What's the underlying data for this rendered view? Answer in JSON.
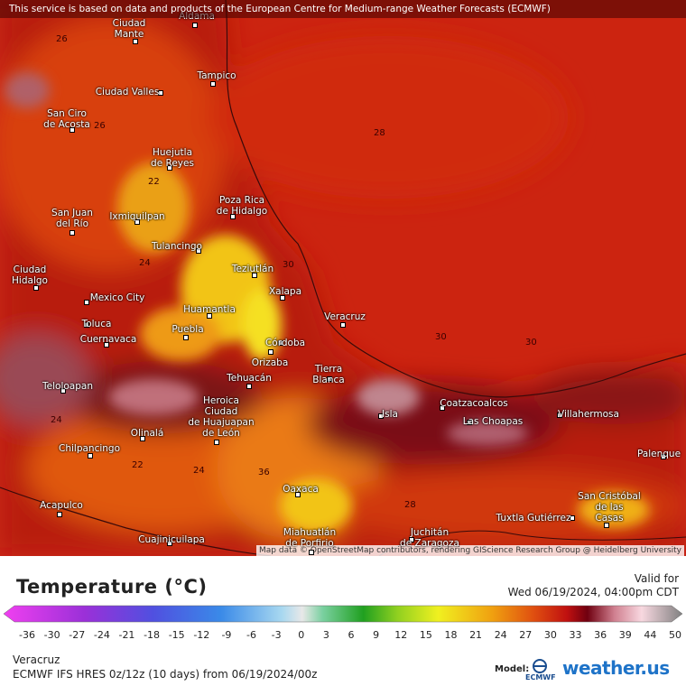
{
  "header": {
    "notice": "This service is based on data and products of the European Centre for Medium-range Weather Forecasts (ECMWF)"
  },
  "map": {
    "cities": [
      "Aldama",
      "Ciudad\nMante",
      "Tampico",
      "Ciudad Valles",
      "San Ciro\nde Acosta",
      "Huejutla\nde Reyes",
      "Poza Rica\nde Hidalgo",
      "San Juan\ndel Río",
      "Ixmiquilpan",
      "Tulancingo",
      "Teziutlán",
      "Ciudad\nHidalgo",
      "Xalapa",
      "Mexico City",
      "Huamantla",
      "Veracruz",
      "Toluca",
      "Puebla",
      "Cuernavaca",
      "Córdoba",
      "Orizaba",
      "Tierra\nBlanca",
      "Tehuacán",
      "Teloloapan",
      "Heroica\nCiudad\nde Huajuapan\nde León",
      "Coatzacoalcos",
      "Villahermosa",
      "Isla",
      "Las Choapas",
      "Olinalá",
      "Chilpancingo",
      "Palenque",
      "Oaxaca",
      "San Cristóbal\nde las\nCasas",
      "Acapulco",
      "Tuxtla Gutiérrez",
      "Juchitán\nde Zaragoza",
      "Miahuatlán\nde Porfirio",
      "Cuajinicuilapa"
    ],
    "contour_labels": [
      28,
      26,
      26,
      22,
      24,
      30,
      30,
      30,
      24,
      22,
      24,
      28,
      36
    ],
    "attribution": "Map data © OpenStreetMap contributors, rendering GIScience Research Group @ Heidelberg University"
  },
  "legend": {
    "title": "Temperature (°C)",
    "valid_label": "Valid for",
    "valid_time": "Wed 06/19/2024, 04:00pm CDT",
    "ticks": [
      -36,
      -30,
      -27,
      -24,
      -21,
      -18,
      -15,
      -12,
      -9,
      -6,
      -3,
      0,
      3,
      6,
      9,
      12,
      15,
      18,
      21,
      24,
      27,
      30,
      33,
      36,
      39,
      44,
      50
    ]
  },
  "footer": {
    "location": "Veracruz",
    "model_run": "ECMWF IFS HRES 0z/12z (10 days) from 06/19/2024/00z",
    "model_label": "Model:",
    "ecmwf": "ECMWF",
    "brand": "weather.us"
  }
}
